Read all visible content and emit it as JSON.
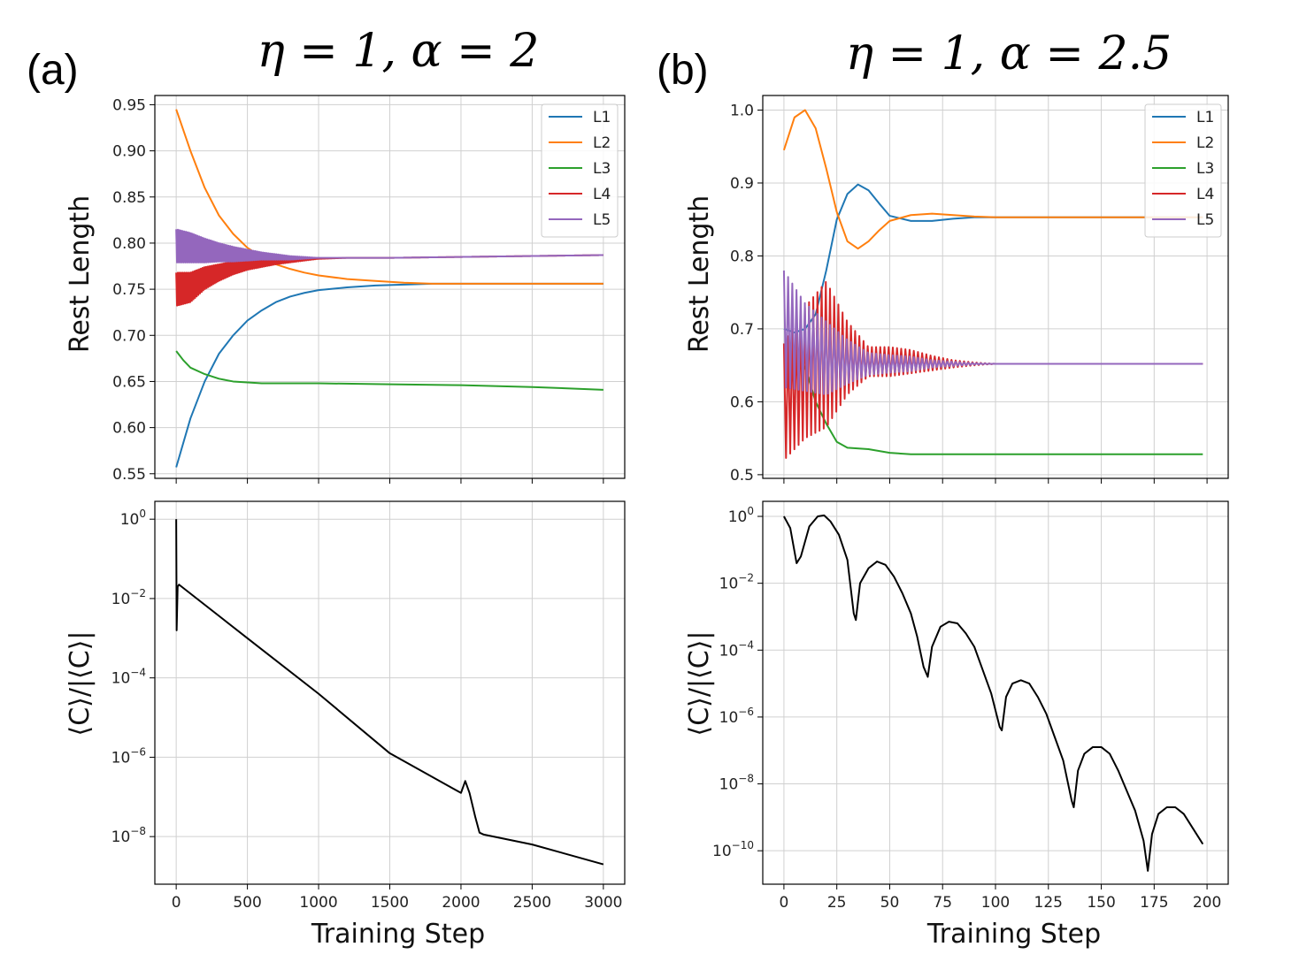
{
  "panels": [
    {
      "label": "(a)",
      "title": "η = 1, α = 2",
      "xlabel": "Training Step",
      "xticks": [
        "0",
        "500",
        "1000",
        "1500",
        "2000",
        "2500",
        "3000"
      ]
    },
    {
      "label": "(b)",
      "title": "η = 1, α = 2.5",
      "xlabel": "Training Step",
      "xticks": [
        "0",
        "25",
        "50",
        "75",
        "100",
        "125",
        "150",
        "175",
        "200"
      ]
    }
  ],
  "colors": {
    "L1": "#1f77b4",
    "L2": "#ff7f0e",
    "L3": "#2ca02c",
    "L4": "#d62728",
    "L5": "#9467bd",
    "cost": "#000000"
  },
  "chart_data": [
    {
      "type": "line",
      "panel": "(a) top",
      "title": "η = 1, α = 2",
      "ylabel": "Rest Length",
      "xlim": [
        -150,
        3150
      ],
      "ylim": [
        0.545,
        0.96
      ],
      "x_ticks": [
        0,
        500,
        1000,
        1500,
        2000,
        2500,
        3000
      ],
      "y_ticks": [
        "0.55",
        "0.60",
        "0.65",
        "0.70",
        "0.75",
        "0.80",
        "0.85",
        "0.90",
        "0.95"
      ],
      "grid": true,
      "legend": "top-right",
      "series": [
        {
          "name": "L1",
          "x": [
            0,
            100,
            200,
            300,
            400,
            500,
            600,
            700,
            800,
            900,
            1000,
            1200,
            1400,
            1600,
            1800,
            2000,
            2500,
            3000
          ],
          "y": [
            0.557,
            0.61,
            0.65,
            0.68,
            0.7,
            0.716,
            0.727,
            0.736,
            0.742,
            0.746,
            0.749,
            0.752,
            0.754,
            0.755,
            0.756,
            0.756,
            0.756,
            0.756
          ]
        },
        {
          "name": "L2",
          "x": [
            0,
            100,
            200,
            300,
            400,
            500,
            600,
            700,
            800,
            900,
            1000,
            1200,
            1400,
            1600,
            1800,
            2000,
            2500,
            3000
          ],
          "y": [
            0.945,
            0.9,
            0.86,
            0.83,
            0.81,
            0.795,
            0.785,
            0.777,
            0.772,
            0.768,
            0.765,
            0.761,
            0.759,
            0.757,
            0.756,
            0.756,
            0.756,
            0.756
          ]
        },
        {
          "name": "L3",
          "x": [
            0,
            50,
            100,
            200,
            300,
            400,
            600,
            1000,
            1500,
            2000,
            2500,
            3000
          ],
          "y": [
            0.683,
            0.673,
            0.665,
            0.658,
            0.653,
            0.65,
            0.648,
            0.648,
            0.647,
            0.646,
            0.644,
            0.641
          ]
        },
        {
          "name": "L4",
          "x": [
            0,
            100,
            200,
            300,
            400,
            500,
            600,
            700,
            800,
            900,
            1000,
            1200,
            1500,
            2000,
            2500,
            3000
          ],
          "y": [
            0.75,
            0.752,
            0.762,
            0.768,
            0.773,
            0.776,
            0.778,
            0.78,
            0.781,
            0.782,
            0.783,
            0.784,
            0.784,
            0.785,
            0.786,
            0.787
          ],
          "oscillation_band": [
            0.018,
            0.016,
            0.012,
            0.009,
            0.007,
            0.005,
            0.004,
            0.003,
            0.002,
            0.001,
            0,
            0,
            0,
            0,
            0,
            0
          ]
        },
        {
          "name": "L5",
          "x": [
            0,
            100,
            200,
            300,
            400,
            500,
            600,
            700,
            800,
            900,
            1000,
            1200,
            1500,
            2000,
            2500,
            3000
          ],
          "y": [
            0.797,
            0.795,
            0.792,
            0.79,
            0.788,
            0.787,
            0.786,
            0.785,
            0.784,
            0.784,
            0.784,
            0.784,
            0.784,
            0.785,
            0.786,
            0.787
          ],
          "oscillation_band": [
            0.018,
            0.016,
            0.013,
            0.01,
            0.008,
            0.006,
            0.004,
            0.003,
            0.002,
            0.001,
            0,
            0,
            0,
            0,
            0,
            0
          ]
        }
      ]
    },
    {
      "type": "line",
      "panel": "(a) bottom",
      "ylabel": "⟨C⟩/|⟨C⟩|",
      "yscale": "log",
      "xlim": [
        -150,
        3150
      ],
      "ylim_log10": [
        -9.2,
        0.45
      ],
      "y_ticks": [
        "10^0",
        "10^-2",
        "10^-4",
        "10^-6",
        "10^-8"
      ],
      "grid": true,
      "series": [
        {
          "name": "cost",
          "x": [
            0,
            3,
            10,
            20,
            500,
            1000,
            1500,
            2000,
            2030,
            2060,
            2100,
            2130,
            2160,
            2500,
            3000
          ],
          "log10_y": [
            0.0,
            -2.8,
            -1.7,
            -1.65,
            -3.0,
            -4.4,
            -5.9,
            -6.9,
            -6.6,
            -6.9,
            -7.5,
            -7.9,
            -7.95,
            -8.2,
            -8.7
          ]
        }
      ]
    },
    {
      "type": "line",
      "panel": "(b) top",
      "title": "η = 1, α = 2.5",
      "ylabel": "Rest Length",
      "xlim": [
        -10,
        210
      ],
      "ylim": [
        0.495,
        1.02
      ],
      "x_ticks": [
        0,
        25,
        50,
        75,
        100,
        125,
        150,
        175,
        200
      ],
      "y_ticks": [
        "0.5",
        "0.6",
        "0.7",
        "0.8",
        "0.9",
        "1.0"
      ],
      "grid": true,
      "legend": "top-right",
      "series": [
        {
          "name": "L1",
          "x": [
            0,
            5,
            10,
            15,
            20,
            25,
            30,
            35,
            40,
            45,
            50,
            60,
            70,
            80,
            90,
            100,
            120,
            150,
            198
          ],
          "y": [
            0.7,
            0.695,
            0.7,
            0.72,
            0.78,
            0.85,
            0.885,
            0.898,
            0.89,
            0.872,
            0.855,
            0.848,
            0.848,
            0.851,
            0.853,
            0.853,
            0.853,
            0.853,
            0.853
          ]
        },
        {
          "name": "L2",
          "x": [
            0,
            5,
            10,
            15,
            20,
            25,
            30,
            35,
            40,
            45,
            50,
            60,
            70,
            80,
            90,
            100,
            120,
            150,
            198
          ],
          "y": [
            0.945,
            0.99,
            1.0,
            0.975,
            0.92,
            0.86,
            0.82,
            0.81,
            0.82,
            0.835,
            0.848,
            0.856,
            0.858,
            0.856,
            0.854,
            0.853,
            0.853,
            0.853,
            0.853
          ]
        },
        {
          "name": "L3",
          "x": [
            0,
            5,
            10,
            15,
            20,
            25,
            30,
            40,
            50,
            60,
            80,
            100,
            150,
            198
          ],
          "y": [
            0.67,
            0.662,
            0.648,
            0.6,
            0.57,
            0.545,
            0.537,
            0.535,
            0.53,
            0.528,
            0.528,
            0.528,
            0.528,
            0.528
          ]
        },
        {
          "name": "L4",
          "x": [
            0,
            10,
            20,
            30,
            40,
            50,
            60,
            70,
            80,
            90,
            100,
            120,
            150,
            198
          ],
          "y": [
            0.6,
            0.64,
            0.665,
            0.66,
            0.655,
            0.655,
            0.655,
            0.653,
            0.652,
            0.652,
            0.652,
            0.652,
            0.652,
            0.652
          ],
          "oscillation_band": [
            0.08,
            0.09,
            0.1,
            0.05,
            0.02,
            0.02,
            0.016,
            0.01,
            0.005,
            0.002,
            0,
            0,
            0,
            0
          ]
        },
        {
          "name": "L5",
          "x": [
            0,
            10,
            20,
            30,
            40,
            50,
            60,
            70,
            80,
            90,
            100,
            120,
            150,
            198
          ],
          "y": [
            0.7,
            0.675,
            0.66,
            0.655,
            0.652,
            0.652,
            0.652,
            0.652,
            0.652,
            0.652,
            0.652,
            0.652,
            0.652,
            0.652
          ],
          "oscillation_band": [
            0.08,
            0.06,
            0.05,
            0.03,
            0.015,
            0.012,
            0.01,
            0.005,
            0.003,
            0.001,
            0,
            0,
            0,
            0
          ]
        }
      ]
    },
    {
      "type": "line",
      "panel": "(b) bottom",
      "ylabel": "⟨C⟩/|⟨C⟩|",
      "yscale": "log",
      "xlim": [
        -10,
        210
      ],
      "ylim_log10": [
        -11.0,
        0.45
      ],
      "y_ticks": [
        "10^0",
        "10^-2",
        "10^-4",
        "10^-6",
        "10^-8",
        "10^-10"
      ],
      "grid": true,
      "series": [
        {
          "name": "cost",
          "x": [
            0,
            3,
            6,
            8,
            12,
            16,
            19,
            22,
            26,
            30,
            33,
            34,
            36,
            40,
            44,
            48,
            52,
            56,
            60,
            63,
            66,
            68,
            70,
            74,
            78,
            82,
            86,
            90,
            94,
            98,
            102,
            103,
            105,
            108,
            112,
            116,
            120,
            124,
            128,
            132,
            136,
            137,
            139,
            142,
            146,
            150,
            154,
            158,
            162,
            166,
            170,
            172,
            174,
            177,
            181,
            185,
            189,
            193,
            197,
            198
          ],
          "log10_y": [
            0.0,
            -0.35,
            -1.4,
            -1.2,
            -0.3,
            0.0,
            0.03,
            -0.15,
            -0.55,
            -1.3,
            -2.9,
            -3.1,
            -2.0,
            -1.55,
            -1.35,
            -1.45,
            -1.8,
            -2.3,
            -2.9,
            -3.6,
            -4.5,
            -4.8,
            -3.9,
            -3.3,
            -3.15,
            -3.2,
            -3.5,
            -3.9,
            -4.6,
            -5.3,
            -6.3,
            -6.4,
            -5.4,
            -5.0,
            -4.9,
            -5.0,
            -5.4,
            -5.9,
            -6.6,
            -7.3,
            -8.5,
            -8.7,
            -7.6,
            -7.1,
            -6.9,
            -6.9,
            -7.1,
            -7.6,
            -8.2,
            -8.8,
            -9.7,
            -10.6,
            -9.5,
            -8.9,
            -8.7,
            -8.7,
            -8.9,
            -9.3,
            -9.7,
            -9.8
          ]
        }
      ]
    }
  ]
}
